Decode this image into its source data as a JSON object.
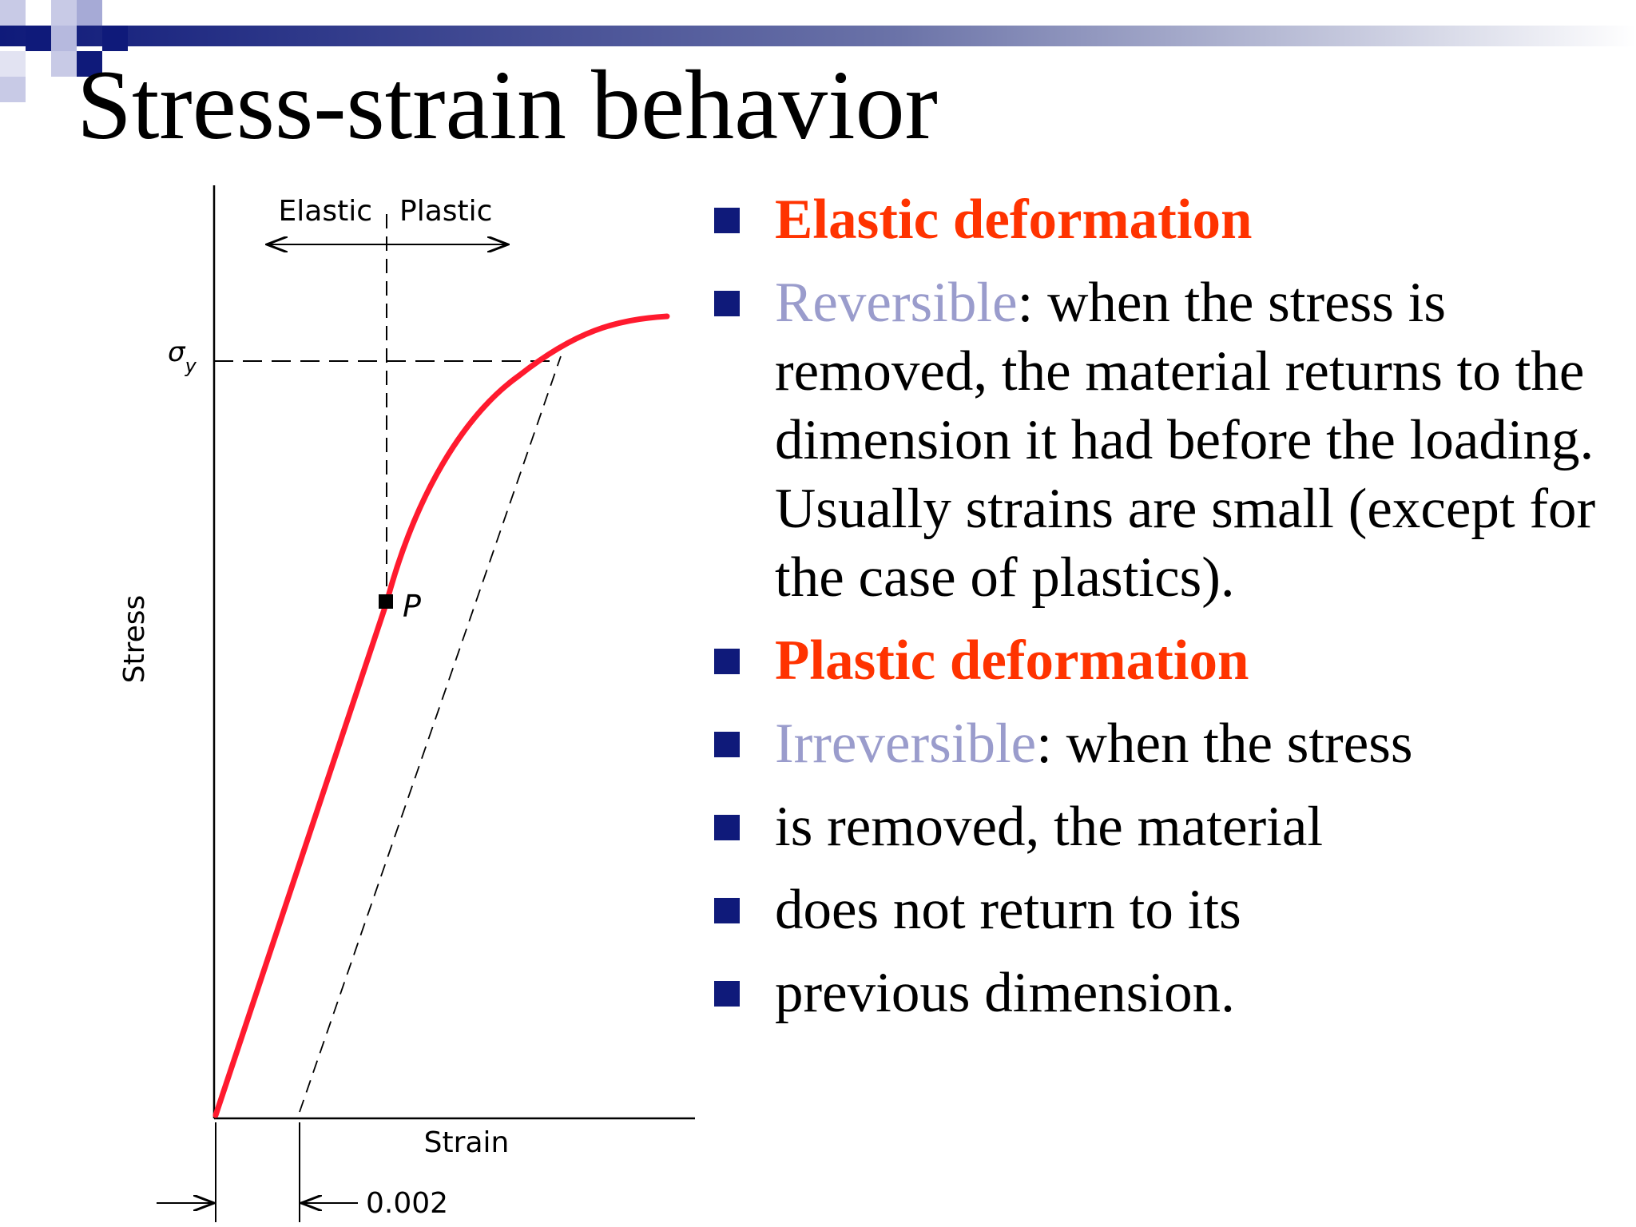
{
  "slide": {
    "title": "Stress-strain behavior"
  },
  "diagram": {
    "label_elastic": "Elastic",
    "label_plastic": "Plastic",
    "label_sigma": "σ",
    "label_sigma_sub": "y",
    "label_point": "P",
    "axis_y": "Stress",
    "axis_x": "Strain",
    "offset_value": "0.002",
    "curve_color": "#ff1a2e"
  },
  "bullets": [
    {
      "heading": "Elastic deformation"
    },
    {
      "term": "Reversible",
      "text": ": when the stress is removed, the material returns to the dimension it had before the loading. Usually strains are small (except for the case of plastics)."
    },
    {
      "heading": "Plastic deformation"
    },
    {
      "term": "Irreversible",
      "text": ": when the stress"
    },
    {
      "text": "is removed, the material"
    },
    {
      "text": "does not return to its"
    },
    {
      "text": "previous dimension."
    }
  ],
  "colors": {
    "heading": "#ff3300",
    "term": "#9a9ccc",
    "bullet": "#0f1a7a"
  }
}
